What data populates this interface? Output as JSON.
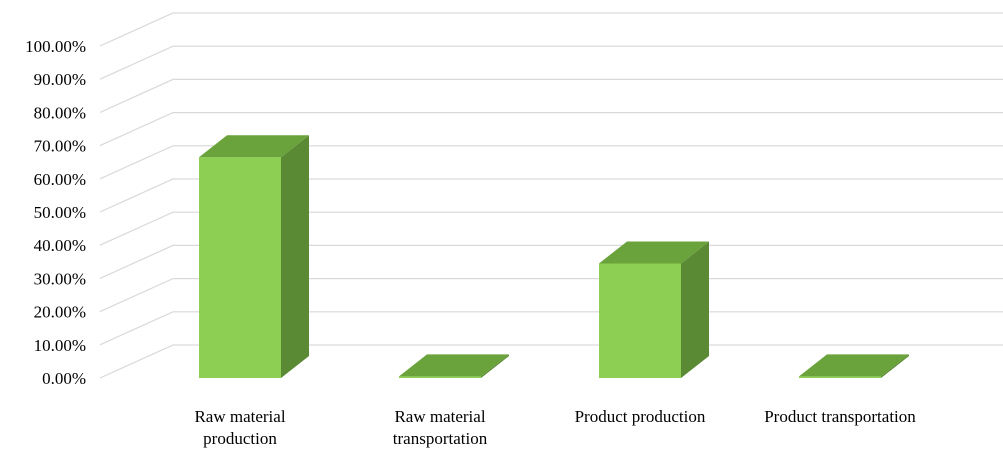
{
  "chart_data": {
    "type": "bar",
    "style": "3d-column",
    "categories": [
      [
        "Raw material",
        "production"
      ],
      [
        "Raw material",
        "transportation"
      ],
      [
        "Product production"
      ],
      [
        "Product transportation"
      ]
    ],
    "values": [
      66.5,
      0.5,
      34.5,
      0.5
    ],
    "ylim": [
      0,
      100
    ],
    "ytick_labels": [
      "0.00%",
      "10.00%",
      "20.00%",
      "30.00%",
      "40.00%",
      "50.00%",
      "60.00%",
      "70.00%",
      "80.00%",
      "90.00%",
      "100.00%"
    ],
    "grid": true,
    "legend": "none",
    "colors": {
      "bar_front": "#8ccf52",
      "bar_top": "#6aa33c",
      "bar_side": "#5a8a33",
      "grid": "#d9d9d9"
    }
  }
}
